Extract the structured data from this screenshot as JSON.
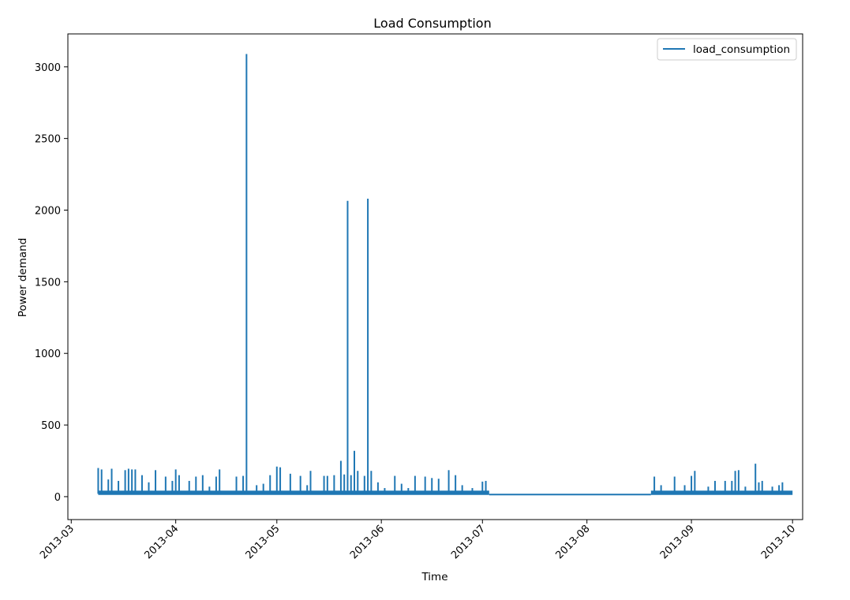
{
  "chart_data": {
    "type": "line",
    "title": "Load Consumption",
    "xlabel": "Time",
    "ylabel": "Power demand",
    "xlim": [
      "2013-02-28",
      "2013-10-04"
    ],
    "ylim": [
      -160,
      3230
    ],
    "x_ticks": [
      "2013-03",
      "2013-04",
      "2013-05",
      "2013-06",
      "2013-07",
      "2013-08",
      "2013-09",
      "2013-10"
    ],
    "y_ticks": [
      0,
      500,
      1000,
      1500,
      2000,
      2500,
      3000
    ],
    "grid": false,
    "legend": {
      "position": "top-right",
      "entries": [
        "load_consumption"
      ]
    },
    "series": [
      {
        "name": "load_consumption",
        "color": "#1f77b4",
        "baseline": 20,
        "segments": [
          {
            "start": "2013-03-09",
            "end": "2013-07-03",
            "spikes": [
              {
                "x": "2013-03-09",
                "y": 200
              },
              {
                "x": "2013-03-10",
                "y": 190
              },
              {
                "x": "2013-03-12",
                "y": 120
              },
              {
                "x": "2013-03-13",
                "y": 195
              },
              {
                "x": "2013-03-15",
                "y": 110
              },
              {
                "x": "2013-03-17",
                "y": 185
              },
              {
                "x": "2013-03-18",
                "y": 195
              },
              {
                "x": "2013-03-19",
                "y": 190
              },
              {
                "x": "2013-03-20",
                "y": 190
              },
              {
                "x": "2013-03-22",
                "y": 150
              },
              {
                "x": "2013-03-24",
                "y": 100
              },
              {
                "x": "2013-03-26",
                "y": 185
              },
              {
                "x": "2013-03-29",
                "y": 140
              },
              {
                "x": "2013-03-31",
                "y": 110
              },
              {
                "x": "2013-04-01",
                "y": 190
              },
              {
                "x": "2013-04-02",
                "y": 150
              },
              {
                "x": "2013-04-05",
                "y": 110
              },
              {
                "x": "2013-04-07",
                "y": 140
              },
              {
                "x": "2013-04-09",
                "y": 150
              },
              {
                "x": "2013-04-11",
                "y": 70
              },
              {
                "x": "2013-04-13",
                "y": 140
              },
              {
                "x": "2013-04-14",
                "y": 190
              },
              {
                "x": "2013-04-19",
                "y": 140
              },
              {
                "x": "2013-04-21",
                "y": 145
              },
              {
                "x": "2013-04-22",
                "y": 3090
              },
              {
                "x": "2013-04-25",
                "y": 80
              },
              {
                "x": "2013-04-27",
                "y": 90
              },
              {
                "x": "2013-04-29",
                "y": 150
              },
              {
                "x": "2013-05-01",
                "y": 210
              },
              {
                "x": "2013-05-02",
                "y": 205
              },
              {
                "x": "2013-05-05",
                "y": 160
              },
              {
                "x": "2013-05-08",
                "y": 145
              },
              {
                "x": "2013-05-10",
                "y": 80
              },
              {
                "x": "2013-05-11",
                "y": 180
              },
              {
                "x": "2013-05-15",
                "y": 145
              },
              {
                "x": "2013-05-16",
                "y": 145
              },
              {
                "x": "2013-05-18",
                "y": 150
              },
              {
                "x": "2013-05-20",
                "y": 250
              },
              {
                "x": "2013-05-21",
                "y": 155
              },
              {
                "x": "2013-05-22",
                "y": 2065
              },
              {
                "x": "2013-05-23",
                "y": 150
              },
              {
                "x": "2013-05-24",
                "y": 320
              },
              {
                "x": "2013-05-25",
                "y": 180
              },
              {
                "x": "2013-05-27",
                "y": 145
              },
              {
                "x": "2013-05-28",
                "y": 2080
              },
              {
                "x": "2013-05-29",
                "y": 180
              },
              {
                "x": "2013-05-31",
                "y": 100
              },
              {
                "x": "2013-06-02",
                "y": 60
              },
              {
                "x": "2013-06-05",
                "y": 145
              },
              {
                "x": "2013-06-07",
                "y": 90
              },
              {
                "x": "2013-06-09",
                "y": 60
              },
              {
                "x": "2013-06-11",
                "y": 145
              },
              {
                "x": "2013-06-14",
                "y": 140
              },
              {
                "x": "2013-06-16",
                "y": 130
              },
              {
                "x": "2013-06-18",
                "y": 125
              },
              {
                "x": "2013-06-21",
                "y": 185
              },
              {
                "x": "2013-06-23",
                "y": 150
              },
              {
                "x": "2013-06-25",
                "y": 80
              },
              {
                "x": "2013-06-28",
                "y": 60
              },
              {
                "x": "2013-07-01",
                "y": 105
              },
              {
                "x": "2013-07-02",
                "y": 110
              }
            ]
          },
          {
            "start": "2013-08-20",
            "end": "2013-10-01",
            "spikes": [
              {
                "x": "2013-08-21",
                "y": 140
              },
              {
                "x": "2013-08-23",
                "y": 80
              },
              {
                "x": "2013-08-27",
                "y": 140
              },
              {
                "x": "2013-08-30",
                "y": 80
              },
              {
                "x": "2013-09-01",
                "y": 145
              },
              {
                "x": "2013-09-02",
                "y": 180
              },
              {
                "x": "2013-09-06",
                "y": 70
              },
              {
                "x": "2013-09-08",
                "y": 110
              },
              {
                "x": "2013-09-11",
                "y": 110
              },
              {
                "x": "2013-09-13",
                "y": 110
              },
              {
                "x": "2013-09-14",
                "y": 180
              },
              {
                "x": "2013-09-15",
                "y": 185
              },
              {
                "x": "2013-09-17",
                "y": 70
              },
              {
                "x": "2013-09-20",
                "y": 230
              },
              {
                "x": "2013-09-21",
                "y": 100
              },
              {
                "x": "2013-09-22",
                "y": 110
              },
              {
                "x": "2013-09-25",
                "y": 70
              },
              {
                "x": "2013-09-27",
                "y": 80
              },
              {
                "x": "2013-09-28",
                "y": 100
              },
              {
                "x": "2013-09-30",
                "y": 40
              }
            ]
          }
        ],
        "gap_level": 15
      }
    ]
  }
}
